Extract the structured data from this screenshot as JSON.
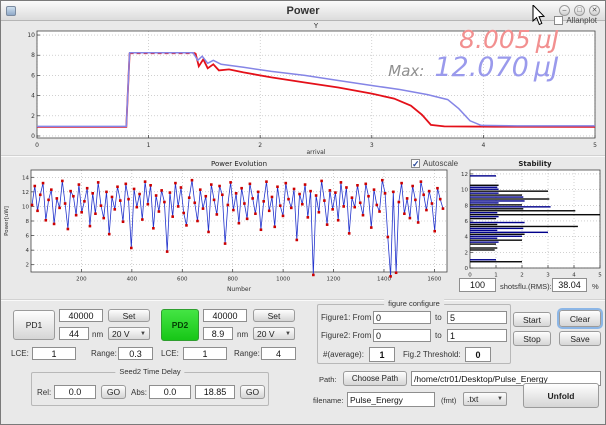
{
  "window": {
    "title": "Power",
    "minimize": "–",
    "maximize": "□",
    "close": "✕"
  },
  "readouts": {
    "current_value": "8.005",
    "current_unit": "µJ",
    "max_label": "Max:",
    "max_value": "12.070",
    "max_unit": "µJ"
  },
  "stats": {
    "shots_value": "100",
    "shots_label": "shots",
    "rms_label": "flu.(RMS):",
    "rms_value": "38.04",
    "rms_unit": "%"
  },
  "pd1": {
    "button": "PD1",
    "counts": "40000",
    "set": "Set",
    "wavelength": "44",
    "unit": "nm",
    "voltage": "20 V",
    "lce_label": "LCE:",
    "lce": "1",
    "range_label": "Range:",
    "range": "0.3"
  },
  "pd2": {
    "button": "PD2",
    "counts": "40000",
    "set": "Set",
    "wavelength": "8.9",
    "unit": "nm",
    "voltage": "20 V",
    "lce_label": "LCE:",
    "lce": "1",
    "range_label": "Range:",
    "range": "4"
  },
  "seed2": {
    "title": "Seed2 Time Delay",
    "rel_label": "Rel:",
    "rel": "0.0",
    "go1": "GO",
    "abs_label": "Abs:",
    "abs": "0.0",
    "abs2": "18.85",
    "go2": "GO"
  },
  "figure_cfg": {
    "title": "figure configure",
    "f1_label": "Figure1: From",
    "f1_from": "0",
    "to1": "to",
    "f1_to": "5",
    "f2_label": "Figure2: From",
    "f2_from": "0",
    "to2": "to",
    "f2_to": "1",
    "avg_label": "#(average):",
    "avg": "1",
    "thr_label": "Fig.2 Threshold:",
    "thr": "0"
  },
  "actions": {
    "start": "Start",
    "stop": "Stop",
    "clear": "Clear",
    "save": "Save",
    "unfold": "Unfold"
  },
  "file": {
    "path_label": "Path:",
    "choose": "Choose Path",
    "path": "/home/ctr01/Desktop/Pulse_Energy",
    "filename_label": "filename:",
    "filename": "Pulse_Energy",
    "fmt_label": "(fmt)",
    "ext": ".txt"
  },
  "chart_data": [
    {
      "type": "line",
      "name": "top_power_plot",
      "title": "Y",
      "xlabel": "arrival",
      "checkbox_label": "Allanplot",
      "checkbox_checked": false,
      "xlim": [
        0,
        5
      ],
      "ylim": [
        -0.2,
        10.4
      ],
      "xticks": [
        0,
        1,
        2,
        3,
        4,
        5
      ],
      "yticks": [
        0,
        2,
        4,
        6,
        8,
        10
      ],
      "grid": true,
      "legend": "none",
      "colors": {
        "red": "#e41019",
        "blue": "#8585e6"
      },
      "series": [
        {
          "name": "red_rise",
          "style": "solid",
          "color": "red",
          "points": [
            [
              0,
              0.9
            ],
            [
              0.8,
              0.9
            ],
            [
              0.83,
              8.2
            ]
          ]
        },
        {
          "name": "red_plateau",
          "style": "dashed",
          "color": "red",
          "points": [
            [
              0.83,
              8.2
            ],
            [
              1.42,
              8.2
            ]
          ]
        },
        {
          "name": "red_decay",
          "style": "solid",
          "color": "red",
          "points": [
            [
              1.42,
              8.2
            ],
            [
              1.45,
              6.9
            ],
            [
              1.49,
              7.6
            ],
            [
              1.53,
              6.7
            ],
            [
              1.58,
              7.1
            ],
            [
              1.63,
              6.5
            ],
            [
              1.72,
              6.6
            ],
            [
              1.85,
              6.3
            ],
            [
              2.1,
              5.8
            ],
            [
              2.4,
              5.3
            ],
            [
              2.7,
              4.8
            ],
            [
              3.0,
              4.2
            ],
            [
              3.2,
              3.7
            ],
            [
              3.35,
              3.0
            ],
            [
              3.45,
              2.1
            ],
            [
              3.53,
              1.1
            ],
            [
              3.65,
              0.95
            ],
            [
              4.1,
              0.92
            ],
            [
              5,
              0.9
            ]
          ]
        },
        {
          "name": "blue_trace",
          "style": "solid",
          "color": "blue",
          "points": [
            [
              0,
              0.95
            ],
            [
              0.8,
              0.95
            ],
            [
              0.83,
              8.25
            ],
            [
              1.4,
              8.25
            ],
            [
              1.44,
              7.5
            ],
            [
              1.48,
              7.9
            ],
            [
              1.53,
              7.2
            ],
            [
              1.58,
              7.5
            ],
            [
              1.65,
              7.1
            ],
            [
              1.85,
              6.8
            ],
            [
              2.1,
              6.4
            ],
            [
              2.4,
              6.0
            ],
            [
              2.7,
              5.5
            ],
            [
              3.0,
              5.0
            ],
            [
              3.25,
              4.6
            ],
            [
              3.5,
              4.1
            ],
            [
              3.68,
              3.6
            ],
            [
              3.78,
              2.7
            ],
            [
              3.88,
              1.5
            ],
            [
              3.98,
              1.05
            ],
            [
              4.3,
              1.0
            ],
            [
              5,
              1.0
            ]
          ]
        }
      ]
    },
    {
      "type": "line",
      "name": "power_evolution",
      "title": "Power Evolution",
      "checkbox_label": "Autoscale",
      "checkbox_checked": true,
      "xlabel": "Number",
      "ylabel": "Power[uW]",
      "xlim": [
        0,
        1650
      ],
      "ylim": [
        1,
        15
      ],
      "xticks": [
        200,
        400,
        600,
        800,
        1000,
        1200,
        1400,
        1600
      ],
      "yticks": [
        2,
        4,
        6,
        8,
        10,
        12,
        14
      ],
      "grid": true,
      "line_color": "#2233cc",
      "marker_color": "#cc0000",
      "x_start": 4,
      "x_step": 10.94,
      "values": [
        10.2,
        12.8,
        9.4,
        11.6,
        13.2,
        8.1,
        10.9,
        12.3,
        7.6,
        11.1,
        9.8,
        13.5,
        10.4,
        6.9,
        12.1,
        11.4,
        8.8,
        13.0,
        9.2,
        10.7,
        12.5,
        7.3,
        11.8,
        9.0,
        13.3,
        10.1,
        8.4,
        12.0,
        6.2,
        11.3,
        9.6,
        12.7,
        10.8,
        7.9,
        13.1,
        11.0,
        4.3,
        12.4,
        9.9,
        11.7,
        8.2,
        13.4,
        10.3,
        12.9,
        7.0,
        11.5,
        9.3,
        12.2,
        10.6,
        3.8,
        11.9,
        8.6,
        13.2,
        10.0,
        12.6,
        9.1,
        7.4,
        11.2,
        13.6,
        10.5,
        8.0,
        12.3,
        9.7,
        11.4,
        6.5,
        13.0,
        10.9,
        8.9,
        12.8,
        11.6,
        4.9,
        10.2,
        13.3,
        9.5,
        11.8,
        7.7,
        12.5,
        10.4,
        8.3,
        13.1,
        11.1,
        9.0,
        12.0,
        6.8,
        10.7,
        13.4,
        9.4,
        11.3,
        7.2,
        12.7,
        10.1,
        8.7,
        13.2,
        11.0,
        9.8,
        12.4,
        5.4,
        11.7,
        10.3,
        13.0,
        8.5,
        12.1,
        0.6,
        11.5,
        9.2,
        13.5,
        10.8,
        7.5,
        12.2,
        9.6,
        11.9,
        8.1,
        13.3,
        10.0,
        12.6,
        6.3,
        11.2,
        9.9,
        12.9,
        10.5,
        8.8,
        13.1,
        11.4,
        7.1,
        12.3,
        10.2,
        9.3,
        13.6,
        11.8,
        5.8,
        0.4,
        12.0,
        0.9,
        10.6,
        13.2,
        9.0,
        11.1,
        8.4,
        12.8,
        10.9,
        7.8,
        13.4,
        11.6,
        9.5,
        12.1,
        10.4,
        6.6,
        12.5,
        11.0,
        9.7
      ]
    },
    {
      "type": "bar",
      "name": "stability_histogram",
      "orientation": "horizontal",
      "title": "Stability",
      "xlim": [
        0,
        5
      ],
      "ylim": [
        0,
        12.5
      ],
      "xticks": [
        0,
        1,
        2,
        3,
        4,
        5
      ],
      "yticks": [
        0,
        2,
        4,
        6,
        8,
        10,
        12
      ],
      "grid": true,
      "bar_thickness": 0.18,
      "colors": {
        "k": "#0a0a0a",
        "b": "#00008b"
      },
      "bars": [
        [
          11.75,
          1.0,
          "b"
        ],
        [
          10.55,
          1.1,
          "k"
        ],
        [
          10.3,
          1.05,
          "b"
        ],
        [
          10.05,
          1.1,
          "b"
        ],
        [
          9.8,
          3.0,
          "k"
        ],
        [
          9.55,
          1.1,
          "b"
        ],
        [
          9.3,
          2.0,
          "k"
        ],
        [
          9.05,
          2.05,
          "b"
        ],
        [
          8.8,
          3.05,
          "k"
        ],
        [
          8.55,
          2.1,
          "b"
        ],
        [
          8.3,
          1.1,
          "b"
        ],
        [
          8.05,
          2.0,
          "k"
        ],
        [
          7.8,
          3.1,
          "b"
        ],
        [
          7.55,
          2.05,
          "k"
        ],
        [
          7.3,
          4.05,
          "k"
        ],
        [
          7.05,
          1.05,
          "b"
        ],
        [
          6.8,
          5.2,
          "k"
        ],
        [
          6.55,
          1.1,
          "b"
        ],
        [
          6.3,
          1.0,
          "k"
        ],
        [
          5.8,
          2.1,
          "b"
        ],
        [
          5.55,
          1.05,
          "k"
        ],
        [
          5.3,
          4.15,
          "k"
        ],
        [
          5.05,
          2.05,
          "b"
        ],
        [
          4.8,
          1.05,
          "b"
        ],
        [
          4.55,
          3.0,
          "b"
        ],
        [
          4.3,
          2.1,
          "k"
        ],
        [
          4.05,
          2.0,
          "b"
        ],
        [
          3.8,
          1.05,
          "b"
        ],
        [
          3.55,
          2.0,
          "k"
        ],
        [
          3.3,
          1.1,
          "b"
        ],
        [
          3.05,
          1.0,
          "k"
        ],
        [
          2.55,
          1.05,
          "k"
        ],
        [
          2.3,
          0.95,
          "k"
        ],
        [
          1.05,
          1.0,
          "b"
        ],
        [
          0.8,
          2.0,
          "k"
        ]
      ]
    }
  ]
}
